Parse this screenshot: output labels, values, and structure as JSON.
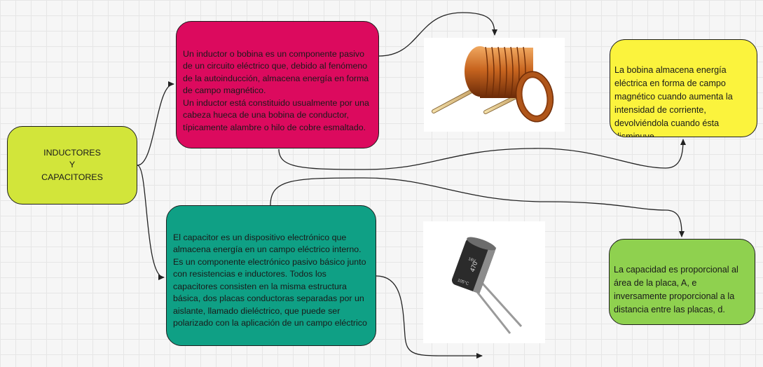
{
  "root": {
    "label": "INDUCTORES\nY\nCAPACITORES"
  },
  "inductor": {
    "text": "Un inductor o bobina es un componente pasivo de un circuito eléctrico que, debido al fenómeno de la autoinducción, almacena energía en forma de campo magnético.\nUn inductor está constituido usualmente por una cabeza hueca de una bobina de conductor, típicamente alambre o hilo de cobre esmaltado."
  },
  "capacitor": {
    "text": "El capacitor es un dispositivo electrónico que almacena energía en un campo eléctrico interno. Es un componente electrónico pasivo básico junto con resistencias e inductores. Todos los capacitores consisten en la misma estructura básica, dos placas conductoras separadas por un aislante, llamado dieléctrico, que puede ser polarizado con la aplicación de un campo eléctrico"
  },
  "bobina_note": {
    "text": "La bobina almacena energía eléctrica en forma de campo magnético cuando aumenta la intensidad de corriente, devolviéndola cuando ésta disminuye."
  },
  "capacidad_note": {
    "text": "La capacidad es proporcional al área de la placa, A, e inversamente proporcional a la distancia entre las placas, d."
  },
  "capacitor_photo": {
    "markings": [
      "470",
      "16V",
      "105°C"
    ]
  },
  "colors": {
    "root": "#d2e53a",
    "inductor": "#dc0a5e",
    "capacitor": "#0fa085",
    "bobina_note": "#fbf33d",
    "capacidad_note": "#8fd14f",
    "connector": "#222222",
    "copper": "#c8651f"
  }
}
